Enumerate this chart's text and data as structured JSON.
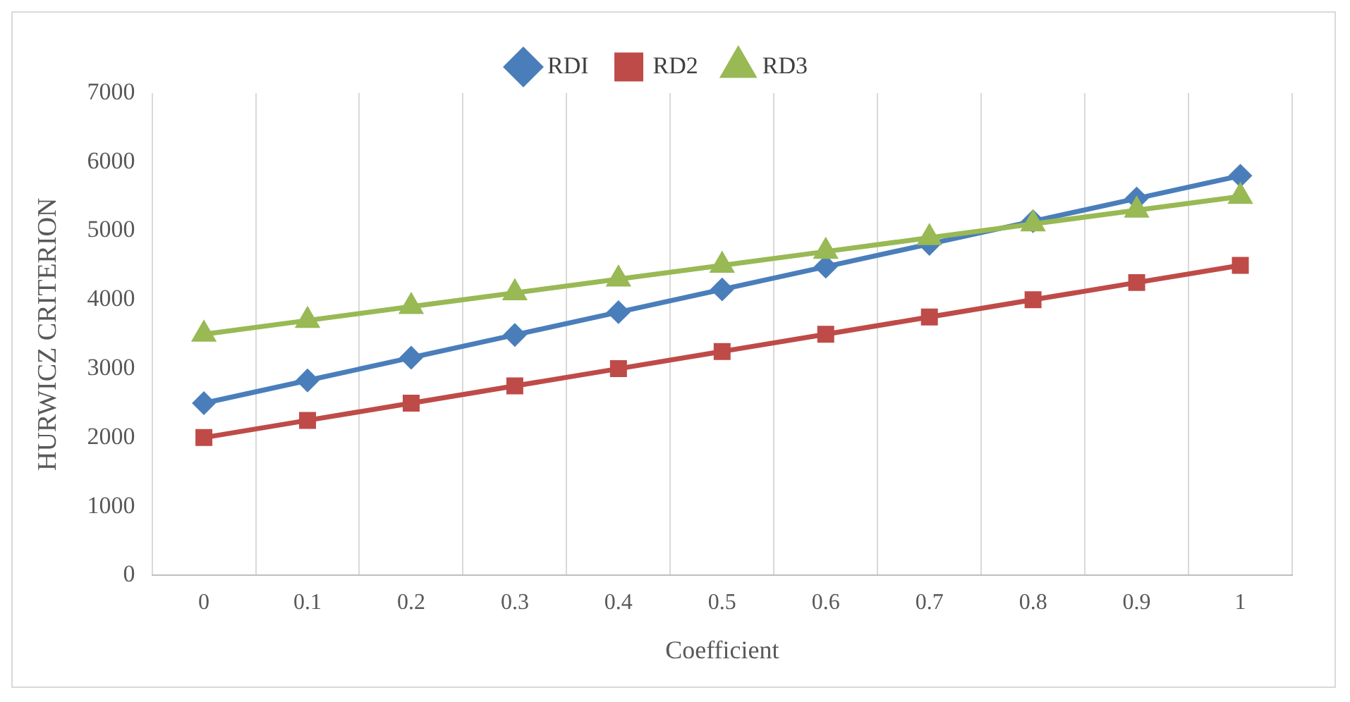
{
  "chart_data": {
    "type": "line",
    "xlabel": "Coefficient",
    "ylabel": "HURWICZ CRITERION",
    "categories": [
      "0",
      "0.1",
      "0.2",
      "0.3",
      "0.4",
      "0.5",
      "0.6",
      "0.7",
      "0.8",
      "0.9",
      "1"
    ],
    "series": [
      {
        "name": "RDI",
        "color": "#4a7ebb",
        "marker": "diamond",
        "values": [
          2500,
          2830,
          3160,
          3490,
          3820,
          4150,
          4480,
          4810,
          5140,
          5470,
          5800
        ]
      },
      {
        "name": "RD2",
        "color": "#be4b48",
        "marker": "square",
        "values": [
          2000,
          2250,
          2500,
          2750,
          3000,
          3250,
          3500,
          3750,
          4000,
          4250,
          4500
        ]
      },
      {
        "name": "RD3",
        "color": "#98b954",
        "marker": "triangle",
        "values": [
          3500,
          3700,
          3900,
          4100,
          4300,
          4500,
          4700,
          4900,
          5100,
          5300,
          5500
        ]
      }
    ],
    "ylim": [
      0,
      7000
    ],
    "yticks": [
      0,
      1000,
      2000,
      3000,
      4000,
      5000,
      6000,
      7000
    ],
    "grid": "x",
    "legend": "top",
    "line_style": "solid"
  }
}
